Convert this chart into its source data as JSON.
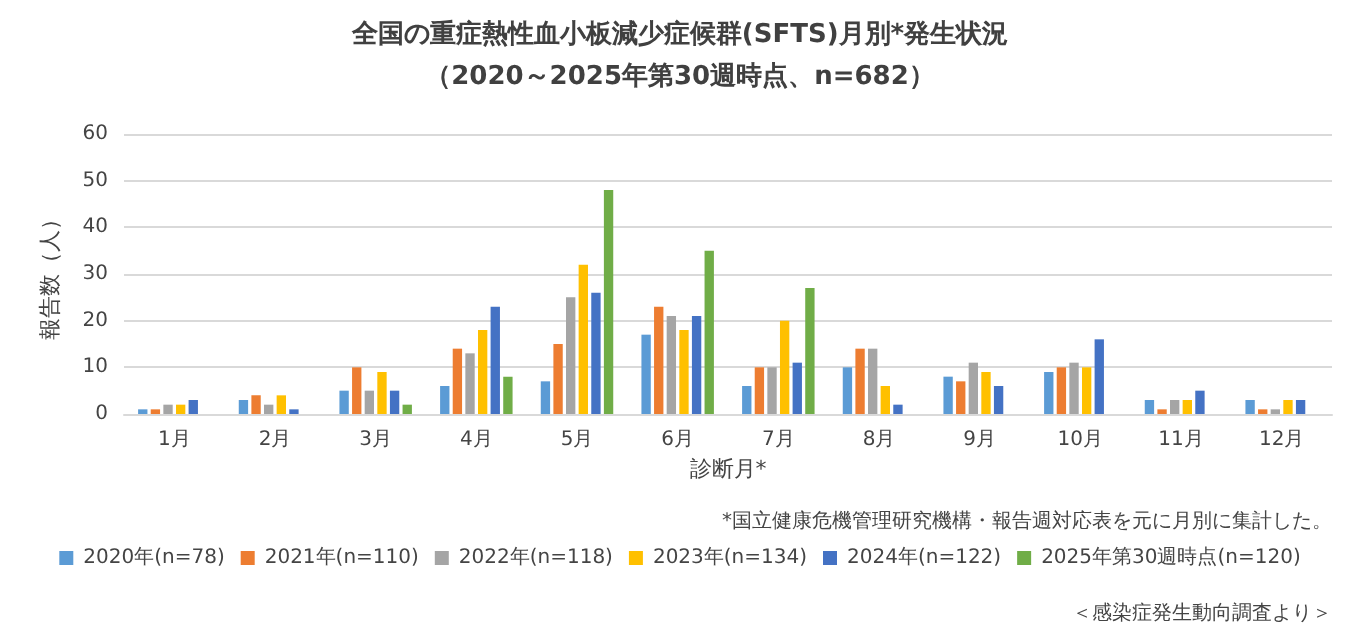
{
  "chart_data": {
    "type": "bar",
    "title": "全国の重症熱性血小板減少症候群(SFTS)月別*発生状況",
    "subtitle": "（2020～2025年第30週時点、n=682）",
    "xlabel": "診断月*",
    "ylabel": "報告数（人）",
    "categories": [
      "1月",
      "2月",
      "3月",
      "4月",
      "5月",
      "6月",
      "7月",
      "8月",
      "9月",
      "10月",
      "11月",
      "12月"
    ],
    "series": [
      {
        "name": "2020年(n=78)",
        "color": "#5b9bd5",
        "values": [
          1,
          3,
          5,
          6,
          7,
          17,
          6,
          10,
          8,
          9,
          3,
          3
        ]
      },
      {
        "name": "2021年(n=110)",
        "color": "#ed7d31",
        "values": [
          1,
          4,
          10,
          14,
          15,
          23,
          10,
          14,
          7,
          10,
          1,
          1
        ]
      },
      {
        "name": "2022年(n=118)",
        "color": "#a5a5a5",
        "values": [
          2,
          2,
          5,
          13,
          25,
          21,
          10,
          14,
          11,
          11,
          3,
          1
        ]
      },
      {
        "name": "2023年(n=134)",
        "color": "#ffc000",
        "values": [
          2,
          4,
          9,
          18,
          32,
          18,
          20,
          6,
          9,
          10,
          3,
          3
        ]
      },
      {
        "name": "2024年(n=122)",
        "color": "#4472c4",
        "values": [
          3,
          1,
          5,
          23,
          26,
          21,
          11,
          2,
          6,
          16,
          5,
          3
        ]
      },
      {
        "name": "2025年第30週時点(n=120)",
        "color": "#70ad47",
        "values": [
          0,
          0,
          2,
          8,
          48,
          35,
          27,
          null,
          null,
          null,
          null,
          null
        ]
      }
    ],
    "ylim": [
      0,
      60
    ],
    "yticks": [
      0,
      10,
      20,
      30,
      40,
      50,
      60
    ],
    "grid": "y",
    "legend": "bottom",
    "annotations": [
      "*国立健康危機管理研究機構・報告週対応表を元に月別に集計した。",
      "＜感染症発生動向調査より＞"
    ]
  }
}
